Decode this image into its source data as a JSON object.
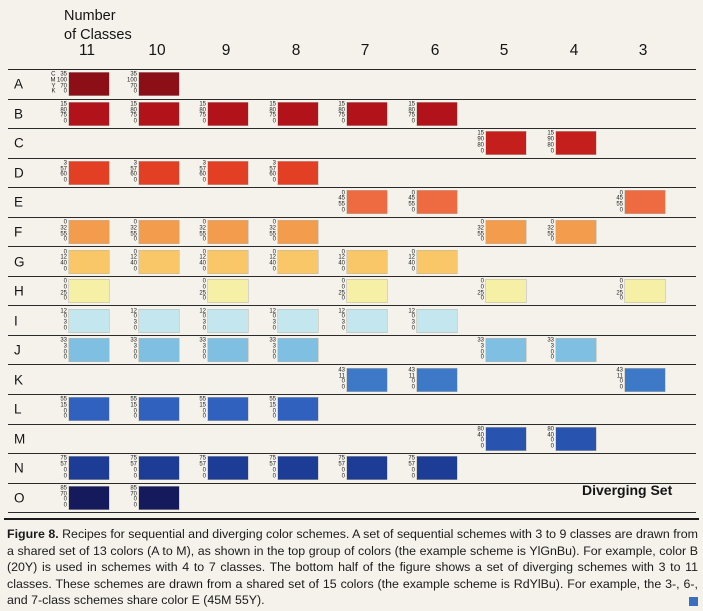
{
  "header": {
    "classes_label": "Number\nof Classes",
    "columns": [
      "11",
      "10",
      "9",
      "8",
      "7",
      "6",
      "5",
      "4",
      "3"
    ]
  },
  "cmyk_letters": [
    "C",
    "M",
    "Y",
    "K"
  ],
  "rows": [
    {
      "label": "A",
      "color": "#8c0e16",
      "cmyk": [
        "35",
        "100",
        "70",
        "0"
      ],
      "in_schemes": [
        "11",
        "10"
      ],
      "show_letters": true
    },
    {
      "label": "B",
      "color": "#b21219",
      "cmyk": [
        "15",
        "80",
        "75",
        "0"
      ],
      "in_schemes": [
        "11",
        "10",
        "9",
        "8",
        "7",
        "6"
      ]
    },
    {
      "label": "C",
      "color": "#c41f1d",
      "cmyk": [
        "15",
        "90",
        "80",
        "0"
      ],
      "in_schemes": [
        "5",
        "4"
      ]
    },
    {
      "label": "D",
      "color": "#e23f24",
      "cmyk": [
        "3",
        "57",
        "60",
        "0"
      ],
      "in_schemes": [
        "11",
        "10",
        "9",
        "8"
      ]
    },
    {
      "label": "E",
      "color": "#ee6a40",
      "cmyk": [
        "0",
        "45",
        "55",
        "0"
      ],
      "in_schemes": [
        "7",
        "6",
        "3"
      ]
    },
    {
      "label": "F",
      "color": "#f49c4e",
      "cmyk": [
        "0",
        "32",
        "55",
        "0"
      ],
      "in_schemes": [
        "11",
        "10",
        "9",
        "8",
        "5",
        "4"
      ]
    },
    {
      "label": "G",
      "color": "#f9c767",
      "cmyk": [
        "0",
        "12",
        "40",
        "0"
      ],
      "in_schemes": [
        "11",
        "10",
        "9",
        "8",
        "7",
        "6"
      ]
    },
    {
      "label": "H",
      "color": "#f5f0a6",
      "cmyk": [
        "0",
        "0",
        "25",
        "0"
      ],
      "in_schemes": [
        "11",
        "9",
        "7",
        "5",
        "3"
      ]
    },
    {
      "label": "I",
      "color": "#c4e6ef",
      "cmyk": [
        "12",
        "0",
        "3",
        "0"
      ],
      "in_schemes": [
        "11",
        "10",
        "9",
        "8",
        "7",
        "6"
      ]
    },
    {
      "label": "J",
      "color": "#7fc0e2",
      "cmyk": [
        "33",
        "3",
        "0",
        "0"
      ],
      "in_schemes": [
        "11",
        "10",
        "9",
        "8",
        "5",
        "4"
      ]
    },
    {
      "label": "K",
      "color": "#3e79c8",
      "cmyk": [
        "43",
        "11",
        "0",
        "0"
      ],
      "in_schemes": [
        "7",
        "6",
        "3"
      ]
    },
    {
      "label": "L",
      "color": "#3061be",
      "cmyk": [
        "55",
        "15",
        "0",
        "0"
      ],
      "in_schemes": [
        "11",
        "10",
        "9",
        "8"
      ]
    },
    {
      "label": "M",
      "color": "#2853ae",
      "cmyk": [
        "80",
        "40",
        "0",
        "0"
      ],
      "in_schemes": [
        "5",
        "4"
      ]
    },
    {
      "label": "N",
      "color": "#1d3c96",
      "cmyk": [
        "75",
        "57",
        "0",
        "0"
      ],
      "in_schemes": [
        "11",
        "10",
        "9",
        "8",
        "7",
        "6"
      ]
    },
    {
      "label": "O",
      "color": "#141a5c",
      "cmyk": [
        "85",
        "70",
        "0",
        "0"
      ],
      "in_schemes": [
        "11",
        "10"
      ]
    }
  ],
  "diverging_label": "Diverging Set",
  "caption": {
    "figure_label": "Figure 8.",
    "text": "Recipes for sequential and diverging color schemes. A set of sequential schemes with 3 to 9 classes are drawn from a shared set of 13 colors (A to M), as shown in the top group of colors (the example scheme is YlGnBu). For example, color B (20Y) is used in schemes with 4 to 7 classes. The bottom half of the figure shows a set of diverging schemes with 3 to 11 classes. These schemes are drawn from a shared set of 15 colors (the example scheme is RdYlBu). For example, the 3-, 6-, and 7-class schemes share color E (45M 55Y)."
  }
}
